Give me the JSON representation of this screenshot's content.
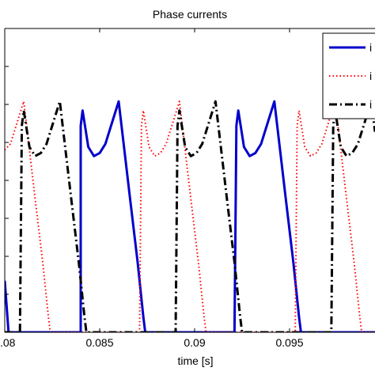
{
  "chart_data": {
    "type": "line",
    "title": "Phase currents",
    "xlabel": "time [s]",
    "ylabel": "",
    "xlim": [
      0.08,
      0.0995
    ],
    "ylim": [
      0,
      1
    ],
    "grid": false,
    "legend_placement": "top-right",
    "x_ticks": [
      0.08,
      0.085,
      0.09,
      0.095
    ],
    "x_tick_labels": [
      ".08",
      "0.085",
      "0.09",
      "0.095"
    ],
    "series": [
      {
        "name": "i",
        "color": "#0000cc",
        "style": "solid",
        "points": [
          [
            0.08,
            0.17
          ],
          [
            0.0802,
            0.0
          ],
          [
            0.084,
            0.0
          ],
          [
            0.084,
            0.68
          ],
          [
            0.0841,
            0.73
          ],
          [
            0.0844,
            0.61
          ],
          [
            0.0847,
            0.58
          ],
          [
            0.085,
            0.59
          ],
          [
            0.0853,
            0.62
          ],
          [
            0.0856,
            0.68
          ],
          [
            0.086,
            0.76
          ],
          [
            0.0863,
            0.6
          ],
          [
            0.0866,
            0.44
          ],
          [
            0.087,
            0.23
          ],
          [
            0.0873,
            0.05
          ],
          [
            0.0874,
            0.0
          ],
          [
            0.0921,
            0.0
          ],
          [
            0.0922,
            0.68
          ],
          [
            0.0923,
            0.73
          ],
          [
            0.0926,
            0.61
          ],
          [
            0.0929,
            0.58
          ],
          [
            0.0932,
            0.59
          ],
          [
            0.0935,
            0.62
          ],
          [
            0.0938,
            0.68
          ],
          [
            0.0942,
            0.76
          ],
          [
            0.0945,
            0.6
          ],
          [
            0.0948,
            0.44
          ],
          [
            0.0952,
            0.23
          ],
          [
            0.0955,
            0.05
          ],
          [
            0.0956,
            0.0
          ],
          [
            0.0995,
            0.0
          ]
        ]
      },
      {
        "name": "i",
        "color": "#ff0000",
        "style": "dotted",
        "points": [
          [
            0.08,
            0.6
          ],
          [
            0.0803,
            0.62
          ],
          [
            0.0806,
            0.68
          ],
          [
            0.081,
            0.76
          ],
          [
            0.0813,
            0.6
          ],
          [
            0.0816,
            0.44
          ],
          [
            0.082,
            0.23
          ],
          [
            0.0823,
            0.05
          ],
          [
            0.0824,
            0.0
          ],
          [
            0.0871,
            0.0
          ],
          [
            0.0872,
            0.68
          ],
          [
            0.0873,
            0.73
          ],
          [
            0.0876,
            0.61
          ],
          [
            0.0879,
            0.58
          ],
          [
            0.0882,
            0.59
          ],
          [
            0.0885,
            0.62
          ],
          [
            0.0888,
            0.68
          ],
          [
            0.0892,
            0.76
          ],
          [
            0.0895,
            0.6
          ],
          [
            0.0898,
            0.44
          ],
          [
            0.0902,
            0.23
          ],
          [
            0.0905,
            0.05
          ],
          [
            0.0906,
            0.0
          ],
          [
            0.0953,
            0.0
          ],
          [
            0.0954,
            0.68
          ],
          [
            0.0955,
            0.73
          ],
          [
            0.0958,
            0.61
          ],
          [
            0.0961,
            0.58
          ],
          [
            0.0964,
            0.59
          ],
          [
            0.0967,
            0.62
          ],
          [
            0.097,
            0.68
          ],
          [
            0.0974,
            0.76
          ],
          [
            0.0977,
            0.6
          ],
          [
            0.098,
            0.44
          ],
          [
            0.0984,
            0.23
          ],
          [
            0.0987,
            0.05
          ],
          [
            0.0988,
            0.0
          ],
          [
            0.0995,
            0.0
          ]
        ]
      },
      {
        "name": "i",
        "color": "#000000",
        "style": "dashdot",
        "points": [
          [
            0.08,
            0.0
          ],
          [
            0.0808,
            0.0
          ],
          [
            0.0809,
            0.68
          ],
          [
            0.081,
            0.73
          ],
          [
            0.0813,
            0.61
          ],
          [
            0.0816,
            0.58
          ],
          [
            0.0819,
            0.59
          ],
          [
            0.0822,
            0.62
          ],
          [
            0.0825,
            0.68
          ],
          [
            0.0829,
            0.76
          ],
          [
            0.0832,
            0.6
          ],
          [
            0.0835,
            0.44
          ],
          [
            0.0839,
            0.23
          ],
          [
            0.0842,
            0.05
          ],
          [
            0.0843,
            0.0
          ],
          [
            0.089,
            0.0
          ],
          [
            0.0891,
            0.68
          ],
          [
            0.0892,
            0.73
          ],
          [
            0.0895,
            0.61
          ],
          [
            0.0898,
            0.58
          ],
          [
            0.0901,
            0.59
          ],
          [
            0.0904,
            0.62
          ],
          [
            0.0907,
            0.68
          ],
          [
            0.0911,
            0.76
          ],
          [
            0.0914,
            0.6
          ],
          [
            0.0917,
            0.44
          ],
          [
            0.0921,
            0.23
          ],
          [
            0.0924,
            0.05
          ],
          [
            0.0925,
            0.0
          ],
          [
            0.0972,
            0.0
          ],
          [
            0.0973,
            0.68
          ],
          [
            0.0974,
            0.73
          ],
          [
            0.0977,
            0.61
          ],
          [
            0.098,
            0.58
          ],
          [
            0.0983,
            0.59
          ],
          [
            0.0986,
            0.62
          ],
          [
            0.0989,
            0.68
          ],
          [
            0.0993,
            0.76
          ],
          [
            0.0995,
            0.66
          ]
        ]
      }
    ]
  }
}
